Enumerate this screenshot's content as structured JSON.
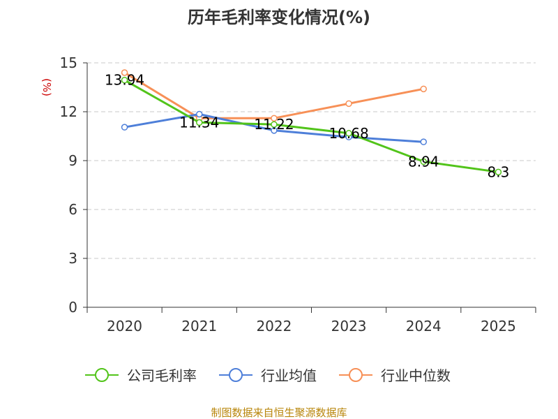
{
  "chart_data": {
    "type": "line",
    "title": "历年毛利率变化情况(%)",
    "ylabel": "(%)",
    "xlabel": "",
    "categories": [
      "2020",
      "2021",
      "2022",
      "2023",
      "2024",
      "2025"
    ],
    "ylim": [
      0,
      15
    ],
    "yticks": [
      0,
      3,
      6,
      9,
      12,
      15
    ],
    "grid": true,
    "legend_position": "bottom",
    "series": [
      {
        "name": "公司毛利率",
        "color": "#52c41a",
        "values": [
          13.94,
          11.34,
          11.22,
          10.68,
          8.94,
          8.3
        ],
        "labels": [
          "13.94",
          "11.34",
          "11.22",
          "10.68",
          "8.94",
          "8.3"
        ]
      },
      {
        "name": "行业均值",
        "color": "#4e7fd9",
        "values": [
          11.05,
          11.85,
          10.85,
          10.45,
          10.15,
          null
        ]
      },
      {
        "name": "行业中位数",
        "color": "#f79057",
        "values": [
          14.4,
          11.6,
          11.6,
          12.5,
          13.4,
          null
        ]
      }
    ]
  },
  "source_text": "制图数据来自恒生聚源数据库"
}
